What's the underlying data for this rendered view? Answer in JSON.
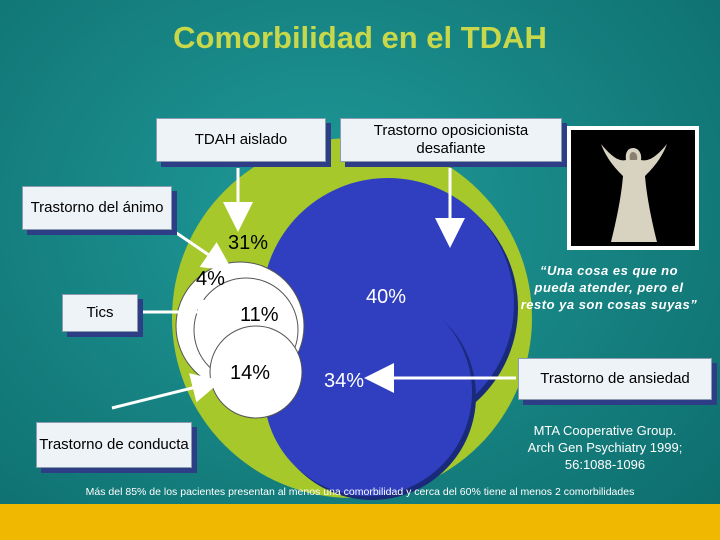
{
  "title": "Comorbilidad en el TDAH",
  "boxes": {
    "tdah_aislado": "TDAH aislado",
    "oposicionista": "Trastorno oposicionista desafiante",
    "animo": "Trastorno del ánimo",
    "tics": "Tics",
    "conducta": "Trastorno de conducta",
    "ansiedad": "Trastorno de ansiedad"
  },
  "percentages": {
    "p31": "31%",
    "p4": "4%",
    "p11": "11%",
    "p14": "14%",
    "p40": "40%",
    "p34": "34%"
  },
  "quote": "“Una cosa es que no pueda atender, pero el resto ya son cosas suyas”",
  "citation": "MTA Cooperative Group. Arch Gen Psychiatry 1999; 56:1088-1096",
  "footnote": "Más del 85% de los pacientes presentan al menos una comorbilidad y cerca del 60% tiene al menos 2 comorbilidades",
  "colors": {
    "background": "#15807f",
    "big_circle": "#a6c82a",
    "blue_circle": "#2f3fbf",
    "white_circle": "#ffffff",
    "title": "#c8d84a",
    "bottom_bar": "#f0b800"
  }
}
